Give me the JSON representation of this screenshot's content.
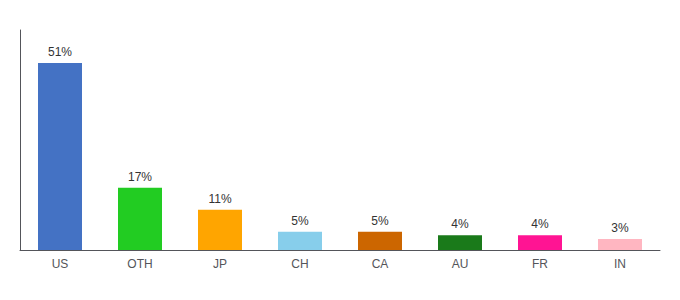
{
  "chart_data": {
    "type": "bar",
    "categories": [
      "US",
      "OTH",
      "JP",
      "CH",
      "CA",
      "AU",
      "FR",
      "IN"
    ],
    "values": [
      51,
      17,
      11,
      5,
      5,
      4,
      4,
      3
    ],
    "value_labels": [
      "51%",
      "17%",
      "11%",
      "5%",
      "5%",
      "4%",
      "4%",
      "3%"
    ],
    "colors": [
      "#4472C4",
      "#22CC22",
      "#FFA500",
      "#87CEEB",
      "#CC6600",
      "#1A7A1A",
      "#FF1493",
      "#FFB6C1"
    ],
    "ylim": [
      0,
      60
    ],
    "data_labels": true,
    "tick_labels": "x",
    "grid": false
  }
}
